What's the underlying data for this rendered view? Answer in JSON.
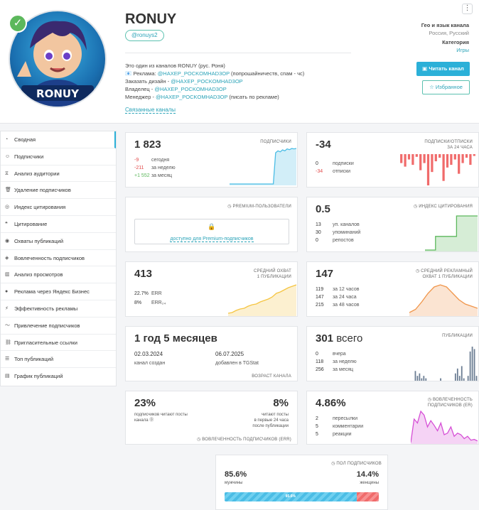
{
  "header": {
    "title": "RONUY",
    "handle": "@ronuys2",
    "menu_glyph": "⋮",
    "description": {
      "line1": "Это один из каналов RONUY (рус. Роня)",
      "line2_prefix": "📧 Реклама: ",
      "line2_link": "@HAXEP_POCKOMHAD3OP",
      "line2_suffix": " (попрошайничеств, спам - чс)",
      "line3_prefix": "Заказать дизайн - ",
      "line3_link": "@HAXEP_POCKOMHAD3OP",
      "line4_prefix": "Владелец - ",
      "line4_link": "@HAXEP_POCKOMHAD3OP",
      "line5_prefix": "Менеджер - ",
      "line5_link": "@HAXEP_POCKOMHAD3OP",
      "line5_suffix": " (писать по рекламе)"
    },
    "related_link": "Связанные каналы",
    "geo_label": "Гео и язык канала",
    "geo_value": "Россия, Русский",
    "category_label": "Категория",
    "category_value": "Игры",
    "read_button": "Читать канал",
    "read_icon": "▣",
    "fav_button": "Избранное",
    "fav_icon": "☆",
    "verified_glyph": "✓",
    "avatar_text": "RONUY"
  },
  "sidebar": {
    "items": [
      {
        "icon": "◔",
        "label": "Сводная"
      },
      {
        "icon": "☺",
        "label": "Подписчики"
      },
      {
        "icon": "⧖",
        "label": "Анализ аудитории"
      },
      {
        "icon": "🗑",
        "label": "Удаление подписчиков"
      },
      {
        "icon": "◎",
        "label": "Индекс цитирования"
      },
      {
        "icon": "❝",
        "label": "Цитирование"
      },
      {
        "icon": "◉",
        "label": "Охваты публикаций"
      },
      {
        "icon": "◈",
        "label": "Вовлеченность подписчиков"
      },
      {
        "icon": "▥",
        "label": "Анализ просмотров"
      },
      {
        "icon": "●",
        "label": "Реклама через Яндекс Бизнес"
      },
      {
        "icon": "⚡",
        "label": "Эффективность рекламы"
      },
      {
        "icon": "〜",
        "label": "Привлечение подписчиков"
      },
      {
        "icon": "⛓",
        "label": "Пригласительные ссылки"
      },
      {
        "icon": "☰",
        "label": "Топ публикаций"
      },
      {
        "icon": "▤",
        "label": "График публикаций"
      }
    ]
  },
  "subscribers": {
    "value": "1 823",
    "label": "ПОДПИСЧИКИ",
    "rows": [
      {
        "n": "-9",
        "t": "сегодня"
      },
      {
        "n": "-211",
        "t": "за неделю"
      },
      {
        "n": "+1 552",
        "t": "за месяц"
      }
    ]
  },
  "daily": {
    "value": "-34",
    "label1": "ПОДПИСКИ/ОТПИСКИ",
    "label2": "ЗА 24 ЧАСА",
    "rows": [
      {
        "n": "0",
        "t": "подписки"
      },
      {
        "n": "-34",
        "t": "отписки"
      }
    ]
  },
  "premium": {
    "label": "PREMIUM-ПОЛЬЗОВАТЕЛИ",
    "label_icon": "◷",
    "lock_icon": "🔒",
    "lock_text": "доступно для Premium-подписчиков"
  },
  "citation": {
    "value": "0.5",
    "label": "ИНДЕКС ЦИТИРОВАНИЯ",
    "label_icon": "◷",
    "rows": [
      {
        "n": "13",
        "t": "уп. каналов"
      },
      {
        "n": "30",
        "t": "упоминаний"
      },
      {
        "n": "0",
        "t": "репостов"
      }
    ]
  },
  "reach": {
    "value": "413",
    "label1": "СРЕДНИЙ ОХВАТ",
    "label2": "1 ПУБЛИКАЦИИ",
    "rows": [
      {
        "n": "22.7%",
        "t": "ERR"
      },
      {
        "n": "8%",
        "t": "ERR₂₄"
      }
    ]
  },
  "ad_reach": {
    "value": "147",
    "label1": "СРЕДНИЙ РЕКЛАМНЫЙ",
    "label2": "ОХВАТ 1 ПУБЛИКАЦИИ",
    "label_icon": "◷",
    "rows": [
      {
        "n": "119",
        "t": "за 12 часов"
      },
      {
        "n": "147",
        "t": "за 24 часа"
      },
      {
        "n": "215",
        "t": "за 48 часов"
      }
    ]
  },
  "age": {
    "value": "1 год 5 месяцев",
    "created_date": "02.03.2024",
    "created_label": "канал создан",
    "added_date": "06.07.2025",
    "added_label": "добавлен в TGStat",
    "label": "ВОЗРАСТ КАНАЛА"
  },
  "posts": {
    "value": "301",
    "value_suffix": " всего",
    "label": "ПУБЛИКАЦИИ",
    "rows": [
      {
        "n": "0",
        "t": "вчера"
      },
      {
        "n": "118",
        "t": "за неделю"
      },
      {
        "n": "256",
        "t": "за месяц"
      }
    ]
  },
  "err": {
    "left_value": "23%",
    "left_text1": "подписчиков читают посты",
    "left_text2": "канала",
    "left_icon": "⓪",
    "right_value": "8%",
    "right_text1": "читают посты",
    "right_text2": "в первые 24 часа",
    "right_text3": "после публикации",
    "label": "ВОВЛЕЧЕННОСТЬ ПОДПИСЧИКОВ (ERR)",
    "label_icon": "◷"
  },
  "engagement": {
    "value": "4.86%",
    "label1": "ВОВЛЕЧЕННОСТЬ",
    "label2": "ПОДПИСЧИКОВ (ER)",
    "label_icon": "◷",
    "rows": [
      {
        "n": "2",
        "t": "пересылки"
      },
      {
        "n": "5",
        "t": "комментарии"
      },
      {
        "n": "5",
        "t": "реакции"
      }
    ]
  },
  "gender": {
    "label": "ПОЛ ПОДПИСЧИКОВ",
    "label_icon": "◷",
    "male_value": "85.6%",
    "male_label": "мужчины",
    "female_value": "14.4%",
    "female_label": "женщины",
    "bar_label": "85.6%",
    "male_fraction": 0.856
  },
  "colors": {
    "accent": "#2bb0d8",
    "negative": "#e24b4b",
    "positive": "#5cb85c"
  },
  "chart_data": [
    {
      "type": "area",
      "name": "subscribers-trend",
      "x": [
        1,
        2,
        3,
        4,
        5,
        6,
        7,
        8,
        9,
        10,
        11,
        12,
        13,
        14,
        15,
        16,
        17,
        18,
        19,
        20,
        21,
        22,
        23,
        24,
        25,
        26,
        27,
        28,
        29,
        30
      ],
      "values": [
        0,
        0,
        0,
        0,
        0,
        0,
        0,
        0,
        0,
        0,
        0,
        0,
        0,
        0,
        0,
        0,
        0,
        0,
        0,
        0,
        1600,
        1700,
        1650,
        1750,
        1700,
        1800,
        1760,
        1820,
        1800,
        1823
      ],
      "color": "#4bbde5"
    },
    {
      "type": "bar",
      "name": "daily-subs-unsubs",
      "values": [
        -10,
        -14,
        -6,
        -12,
        -3,
        -18,
        -10,
        -35,
        -20,
        -8,
        -4,
        -30,
        -15,
        -12,
        -6,
        -22,
        -10,
        -4,
        -12,
        -2
      ],
      "color": "#f06b6b"
    },
    {
      "type": "line",
      "name": "citation-trend",
      "values": [
        0,
        0,
        0.2,
        0.2,
        0.2,
        0.2,
        0.5,
        0.5,
        0.5,
        0.5,
        0.5
      ],
      "color": "#5cb85c"
    },
    {
      "type": "area",
      "name": "reach-trend",
      "values": [
        2,
        3,
        6,
        8,
        9,
        12,
        14,
        15,
        18,
        20,
        22,
        25,
        30,
        32,
        35,
        38,
        40,
        42
      ],
      "color": "#f5c542"
    },
    {
      "type": "area",
      "name": "ad-reach-curve",
      "values": [
        2,
        5,
        12,
        20,
        26,
        28,
        26,
        20,
        14,
        10,
        8,
        6
      ],
      "color": "#f0954a"
    },
    {
      "type": "bar",
      "name": "posts-per-day",
      "values": [
        0,
        4,
        2,
        3,
        1,
        2,
        1,
        0,
        0,
        0,
        0,
        0,
        0,
        1,
        0,
        0,
        0,
        0,
        0,
        0,
        3,
        5,
        2,
        6,
        1,
        0,
        2,
        12,
        14,
        13,
        2
      ],
      "color": "#6b7d93"
    },
    {
      "type": "area",
      "name": "er-curve",
      "values": [
        0,
        30,
        25,
        40,
        35,
        20,
        28,
        22,
        15,
        25,
        10,
        12,
        20,
        8,
        12,
        10,
        5,
        8,
        3,
        4,
        2
      ],
      "color": "#d64fd6"
    }
  ]
}
